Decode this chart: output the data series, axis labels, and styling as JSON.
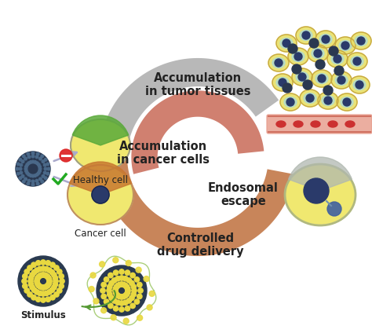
{
  "bg_color": "#ffffff",
  "labels": {
    "healthy_cell": "Healthy cell",
    "cancer_cell": "Cancer cell",
    "accumulation_tumor": "Accumulation\nin tumor tissues",
    "accumulation_cancer": "Accumulation\nin cancer cells",
    "endosomal": "Endosomal\nescape",
    "controlled": "Controlled\ndrug delivery",
    "stimulus": "Stimulus"
  },
  "arrow_gray_color": "#b8b8b8",
  "arrow_brown_color": "#c8855a",
  "arrow_salmon_color": "#d08070",
  "cell_yellow": "#f0e870",
  "cell_outline_green": "#5aaa3a",
  "cell_outline_orange": "#c87830",
  "nucleus_blue": "#2a3a6a",
  "nanoparticle_dark": "#2a3850",
  "nanoparticle_yellow_dots": "#e8d840",
  "blood_vessel_color": "#e07878",
  "text_color": "#222222",
  "label_fontsize": 10,
  "bold_fontsize": 10.5,
  "arrow_lw": 26
}
